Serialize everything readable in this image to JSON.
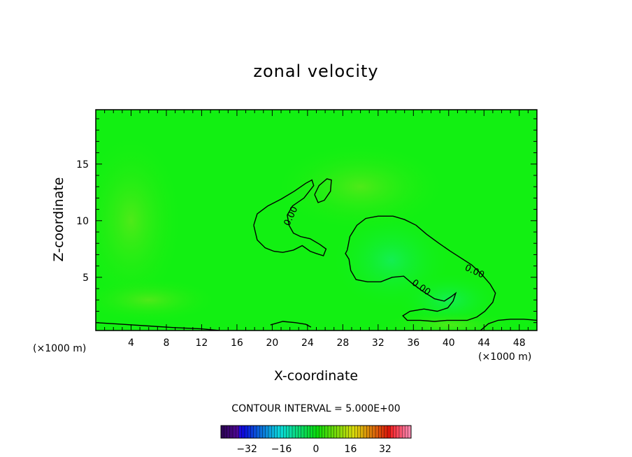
{
  "chart_data": {
    "type": "heatmap",
    "title": "zonal velocity",
    "xlabel": "X-coordinate",
    "ylabel": "Z-coordinate",
    "x_unit_left": "(×1000 m)",
    "x_unit_right": "(×1000 m)",
    "xlim": [
      0,
      50
    ],
    "ylim": [
      0.3,
      19.8
    ],
    "x_ticks": [
      4,
      8,
      12,
      16,
      20,
      24,
      28,
      32,
      36,
      40,
      44,
      48
    ],
    "y_ticks": [
      5,
      10,
      15
    ],
    "field_description_value": 0,
    "contour_labels": [
      "0.00",
      "0.00",
      "0.00"
    ],
    "contour_interval_text": "CONTOUR INTERVAL = 5.000E+00",
    "colorbar": {
      "range": [
        -44,
        44
      ],
      "ticks": [
        -32,
        -16,
        0,
        16,
        32
      ],
      "colormap": "rainbow"
    },
    "zero_contours": [
      {
        "label": "0.00",
        "points": [
          [
            17.9,
            9.6
          ],
          [
            18.3,
            10.6
          ],
          [
            19.5,
            11.3
          ],
          [
            21.0,
            11.9
          ],
          [
            22.5,
            12.6
          ],
          [
            23.8,
            13.3
          ],
          [
            24.5,
            13.6
          ],
          [
            24.7,
            13.1
          ],
          [
            23.6,
            12.0
          ],
          [
            22.3,
            11.3
          ],
          [
            21.7,
            10.5
          ],
          [
            21.9,
            9.6
          ],
          [
            22.4,
            8.9
          ],
          [
            23.2,
            8.6
          ],
          [
            24.3,
            8.4
          ],
          [
            25.4,
            7.9
          ],
          [
            26.1,
            7.5
          ],
          [
            25.8,
            6.9
          ],
          [
            25.0,
            7.1
          ],
          [
            24.3,
            7.3
          ],
          [
            23.4,
            7.8
          ],
          [
            22.4,
            7.4
          ],
          [
            21.2,
            7.2
          ],
          [
            20.2,
            7.3
          ],
          [
            19.2,
            7.6
          ],
          [
            18.3,
            8.3
          ],
          [
            17.9,
            9.6
          ]
        ]
      },
      {
        "label": "",
        "points": [
          [
            24.8,
            12.3
          ],
          [
            25.3,
            13.1
          ],
          [
            26.2,
            13.7
          ],
          [
            26.7,
            13.6
          ],
          [
            26.6,
            12.6
          ],
          [
            25.9,
            11.8
          ],
          [
            25.2,
            11.6
          ],
          [
            24.8,
            12.3
          ]
        ]
      },
      {
        "label": "0.00",
        "points": [
          [
            28.5,
            7.4
          ],
          [
            28.8,
            8.6
          ],
          [
            29.6,
            9.6
          ],
          [
            30.6,
            10.2
          ],
          [
            32.0,
            10.4
          ],
          [
            33.7,
            10.4
          ],
          [
            35.0,
            10.1
          ],
          [
            36.3,
            9.6
          ],
          [
            37.5,
            8.8
          ],
          [
            38.9,
            8.0
          ],
          [
            40.2,
            7.3
          ],
          [
            41.4,
            6.7
          ],
          [
            42.6,
            6.1
          ],
          [
            43.7,
            5.3
          ],
          [
            44.7,
            4.4
          ],
          [
            45.3,
            3.6
          ],
          [
            45.0,
            2.8
          ],
          [
            44.1,
            2.0
          ],
          [
            43.2,
            1.5
          ],
          [
            42.1,
            1.2
          ],
          [
            41.0,
            1.2
          ],
          [
            39.8,
            1.2
          ],
          [
            38.4,
            1.1
          ],
          [
            36.8,
            1.2
          ],
          [
            35.3,
            1.2
          ],
          [
            34.8,
            1.6
          ],
          [
            35.6,
            2.0
          ],
          [
            37.2,
            2.2
          ],
          [
            38.7,
            2.0
          ],
          [
            39.9,
            2.3
          ],
          [
            40.5,
            2.9
          ],
          [
            40.8,
            3.6
          ],
          [
            40.3,
            3.3
          ],
          [
            39.5,
            2.9
          ],
          [
            38.4,
            3.1
          ],
          [
            37.0,
            3.8
          ],
          [
            35.8,
            4.5
          ],
          [
            34.9,
            5.1
          ],
          [
            33.6,
            5.0
          ],
          [
            32.3,
            4.6
          ],
          [
            30.8,
            4.6
          ],
          [
            29.5,
            4.8
          ],
          [
            28.9,
            5.6
          ],
          [
            28.7,
            6.6
          ],
          [
            28.3,
            7.1
          ],
          [
            28.5,
            7.4
          ]
        ]
      },
      {
        "label": "",
        "points": [
          [
            0,
            1.0
          ],
          [
            3,
            0.85
          ],
          [
            6,
            0.7
          ],
          [
            9,
            0.55
          ],
          [
            12,
            0.45
          ],
          [
            14,
            0.3
          ]
        ]
      },
      {
        "label": "",
        "points": [
          [
            19.8,
            0.8
          ],
          [
            21.2,
            1.1
          ],
          [
            22.6,
            1.0
          ],
          [
            23.8,
            0.85
          ],
          [
            24.4,
            0.6
          ]
        ]
      },
      {
        "label": "",
        "points": [
          [
            43.6,
            0.3
          ],
          [
            44.5,
            0.9
          ],
          [
            45.6,
            1.2
          ],
          [
            47.0,
            1.3
          ],
          [
            48.5,
            1.3
          ],
          [
            50,
            1.2
          ]
        ]
      }
    ]
  }
}
